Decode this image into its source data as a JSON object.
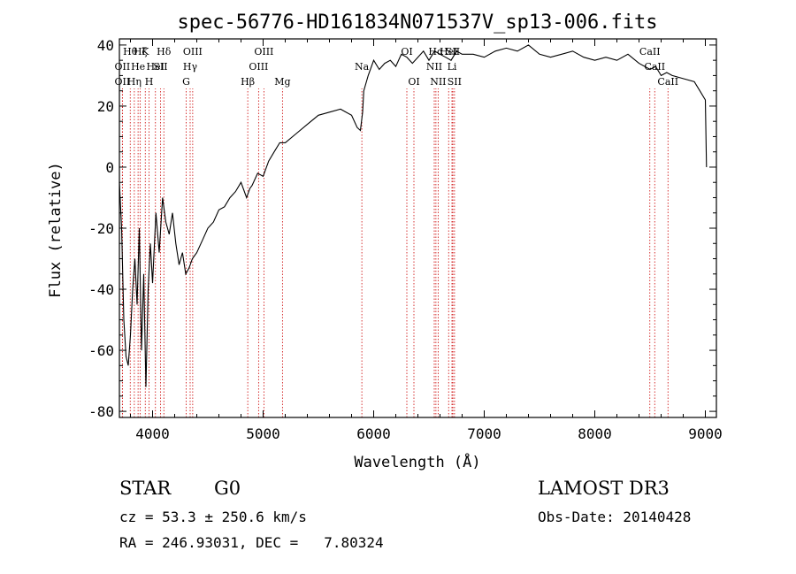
{
  "chart_data": {
    "type": "line",
    "title": "spec-56776-HD161834N071537V_sp13-006.fits",
    "xlabel": "Wavelength (Å)",
    "ylabel": "Flux (relative)",
    "xlim": [
      3700,
      9100
    ],
    "ylim": [
      -82,
      42
    ],
    "x_ticks": [
      4000,
      5000,
      6000,
      7000,
      8000,
      9000
    ],
    "y_ticks": [
      -80,
      -60,
      -40,
      -20,
      0,
      20,
      40
    ],
    "series": [
      {
        "name": "flux",
        "x": [
          3700,
          3720,
          3740,
          3760,
          3780,
          3800,
          3820,
          3840,
          3860,
          3880,
          3900,
          3920,
          3940,
          3960,
          3980,
          4000,
          4030,
          4060,
          4090,
          4120,
          4150,
          4180,
          4210,
          4240,
          4270,
          4300,
          4330,
          4360,
          4400,
          4450,
          4500,
          4550,
          4600,
          4650,
          4700,
          4750,
          4800,
          4850,
          4880,
          4900,
          4950,
          5000,
          5050,
          5100,
          5150,
          5200,
          5300,
          5400,
          5500,
          5600,
          5700,
          5800,
          5850,
          5880,
          5900,
          5910,
          5950,
          6000,
          6050,
          6100,
          6150,
          6200,
          6250,
          6300,
          6350,
          6400,
          6450,
          6500,
          6550,
          6600,
          6650,
          6700,
          6750,
          6800,
          6900,
          7000,
          7100,
          7200,
          7300,
          7400,
          7500,
          7600,
          7700,
          7800,
          7900,
          8000,
          8100,
          8200,
          8300,
          8400,
          8500,
          8550,
          8600,
          8650,
          8700,
          8800,
          8900,
          8950,
          9000,
          9010
        ],
        "y": [
          -5,
          -20,
          -50,
          -62,
          -65,
          -55,
          -40,
          -30,
          -45,
          -20,
          -60,
          -35,
          -72,
          -40,
          -25,
          -38,
          -15,
          -28,
          -10,
          -18,
          -22,
          -15,
          -25,
          -32,
          -28,
          -35,
          -33,
          -30,
          -28,
          -24,
          -20,
          -18,
          -14,
          -13,
          -10,
          -8,
          -5,
          -10,
          -7,
          -6,
          -2,
          -3,
          2,
          5,
          8,
          8,
          11,
          14,
          17,
          18,
          19,
          17,
          13,
          12,
          18,
          25,
          30,
          35,
          32,
          34,
          35,
          33,
          37,
          36,
          34,
          36,
          38,
          35,
          38,
          37,
          36,
          35,
          38,
          37,
          37,
          36,
          38,
          39,
          38,
          40,
          37,
          36,
          37,
          38,
          36,
          35,
          36,
          35,
          37,
          34,
          32,
          33,
          30,
          31,
          30,
          29,
          28,
          25,
          22,
          0
        ]
      }
    ],
    "line_markers": [
      {
        "x": 3727,
        "row": 2,
        "label": "OII"
      },
      {
        "x": 3727,
        "row": 1,
        "label": "OII"
      },
      {
        "x": 3798,
        "row": 0,
        "label": "Hθ"
      },
      {
        "x": 3835,
        "row": 2,
        "label": "Hη"
      },
      {
        "x": 3869,
        "row": 1,
        "label": "He"
      },
      {
        "x": 3889,
        "row": 0,
        "label": "Hζ"
      },
      {
        "x": 3934,
        "row": 0,
        "label": "K"
      },
      {
        "x": 3968,
        "row": 2,
        "label": "H"
      },
      {
        "x": 4026,
        "row": 1,
        "label": "HeI"
      },
      {
        "x": 4072,
        "row": 1,
        "label": "SII"
      },
      {
        "x": 4102,
        "row": 0,
        "label": "Hδ"
      },
      {
        "x": 4304,
        "row": 2,
        "label": "G"
      },
      {
        "x": 4340,
        "row": 1,
        "label": "Hγ"
      },
      {
        "x": 4363,
        "row": 0,
        "label": "OIII"
      },
      {
        "x": 4861,
        "row": 2,
        "label": "Hβ"
      },
      {
        "x": 4959,
        "row": 1,
        "label": "OIII"
      },
      {
        "x": 5007,
        "row": 0,
        "label": "OIII"
      },
      {
        "x": 5175,
        "row": 2,
        "label": "Mg"
      },
      {
        "x": 5893,
        "row": 1,
        "label": "Na"
      },
      {
        "x": 6300,
        "row": 0,
        "label": "OI"
      },
      {
        "x": 6364,
        "row": 2,
        "label": "OI"
      },
      {
        "x": 6548,
        "row": 1,
        "label": "NII"
      },
      {
        "x": 6563,
        "row": 0,
        "label": "Hα"
      },
      {
        "x": 6583,
        "row": 2,
        "label": "NII"
      },
      {
        "x": 6678,
        "row": 0,
        "label": "HeI"
      },
      {
        "x": 6708,
        "row": 1,
        "label": "Li"
      },
      {
        "x": 6716,
        "row": 0,
        "label": "SII"
      },
      {
        "x": 6731,
        "row": 2,
        "label": "SII"
      },
      {
        "x": 8498,
        "row": 0,
        "label": "CaII"
      },
      {
        "x": 8542,
        "row": 1,
        "label": "CaII"
      },
      {
        "x": 8662,
        "row": 2,
        "label": "CaII"
      }
    ]
  },
  "info": {
    "object_class": "STAR",
    "subclass": "G0",
    "survey": "LAMOST DR3",
    "redshift_line": "cz = 53.3 ± 250.6 km/s",
    "obs_date_line": "Obs-Date: 20140428",
    "coords_line": "RA = 246.93031, DEC =   7.80324"
  },
  "colors": {
    "spectrum": "#000000",
    "marker_line": "#cc0000",
    "axis": "#000000"
  }
}
